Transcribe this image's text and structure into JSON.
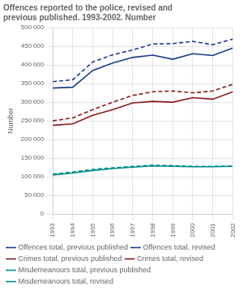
{
  "chart_data": {
    "type": "line",
    "title": "Offences reported to the police, revised and\nprevious published. 1993-2002. Number",
    "ylabel": "Number",
    "x": [
      1993,
      1994,
      1995,
      1996,
      1997,
      1998,
      1999,
      2000,
      2001,
      2002
    ],
    "xlim": [
      1993,
      2002
    ],
    "xticks": [
      1993,
      1994,
      1995,
      1996,
      1997,
      1998,
      1999,
      2000,
      2001,
      2002
    ],
    "ylim": [
      0,
      500000
    ],
    "yticks": [
      0,
      {
        "value": 50000,
        "label": "50 000"
      },
      {
        "value": 100000,
        "label": "100 000"
      },
      {
        "value": 150000,
        "label": "150 000"
      },
      {
        "value": 200000,
        "label": "200 000"
      },
      {
        "value": 250000,
        "label": "250 000"
      },
      {
        "value": 300000,
        "label": "300 000"
      },
      {
        "value": 350000,
        "label": "350 000"
      },
      {
        "value": 400000,
        "label": "400 000"
      },
      {
        "value": 450000,
        "label": "450 000"
      },
      {
        "value": 500000,
        "label": "500 000"
      }
    ],
    "grid": true,
    "legend": "bottom",
    "series": [
      {
        "name": "Offences total, previous published",
        "color": "#1a3a8a",
        "line_style": "dashed",
        "values": [
          355000,
          360000,
          408000,
          427000,
          440000,
          456000,
          457000,
          463000,
          454000,
          469000
        ]
      },
      {
        "name": "Offences total, revised",
        "color": "#1a3a8a",
        "line_style": "solid",
        "values": [
          338000,
          340000,
          385000,
          405000,
          420000,
          426000,
          415000,
          430000,
          425000,
          445000
        ]
      },
      {
        "name": "Crimes total, previous published",
        "color": "#8b1a1a",
        "line_style": "dashed",
        "values": [
          250000,
          258000,
          280000,
          300000,
          318000,
          328000,
          330000,
          325000,
          330000,
          348000
        ]
      },
      {
        "name": "Crimes total, revised",
        "color": "#8b1a1a",
        "line_style": "solid",
        "values": [
          238000,
          242000,
          265000,
          280000,
          298000,
          302000,
          300000,
          312000,
          308000,
          328000
        ]
      },
      {
        "name": "Misdemeanours total, previous published",
        "color": "#008b8b",
        "line_style": "dashed",
        "values": [
          107000,
          113000,
          120000,
          124000,
          128000,
          131000,
          130000,
          128000,
          128000,
          129000
        ]
      },
      {
        "name": "Misdemeanours total, revised",
        "color": "#008b8b",
        "line_style": "solid",
        "values": [
          105000,
          110000,
          117000,
          122000,
          126000,
          129000,
          128000,
          127000,
          127000,
          128000
        ]
      }
    ]
  }
}
